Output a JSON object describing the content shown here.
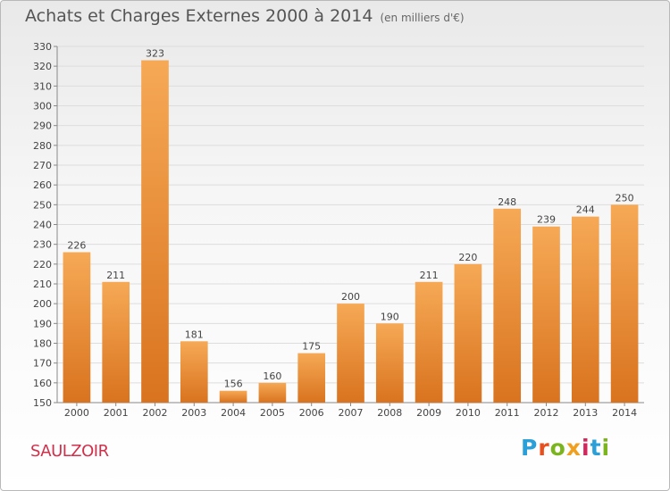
{
  "header": {
    "title": "Achats et Charges Externes 2000 à 2014",
    "subtitle": "(en milliers d'€)"
  },
  "footer": {
    "place": "SAULZOIR",
    "logo": "Proxiti",
    "logo_colors": [
      "#2a9fd8",
      "#e94f1c",
      "#7ab51d",
      "#f0a01e",
      "#d6245c",
      "#2a9fd8",
      "#7ab51d"
    ]
  },
  "colors": {
    "bar_light": "#f6a955",
    "bar_dark": "#d9731f",
    "grid": "#dddddd",
    "title": "#555555",
    "place": "#d1304b"
  },
  "chart_data": {
    "type": "bar",
    "title": "Achats et Charges Externes 2000 à 2014",
    "subtitle": "(en milliers d'€)",
    "categories": [
      "2000",
      "2001",
      "2002",
      "2003",
      "2004",
      "2005",
      "2006",
      "2007",
      "2008",
      "2009",
      "2010",
      "2011",
      "2012",
      "2013",
      "2014"
    ],
    "values": [
      226,
      211,
      323,
      181,
      156,
      160,
      175,
      200,
      190,
      211,
      220,
      248,
      239,
      244,
      250
    ],
    "ylim": [
      150,
      330
    ],
    "yticks": [
      150,
      160,
      170,
      180,
      190,
      200,
      210,
      220,
      230,
      240,
      250,
      260,
      270,
      280,
      290,
      300,
      310,
      320,
      330
    ],
    "xlabel": "",
    "ylabel": "",
    "grid": true,
    "data_labels": true
  }
}
